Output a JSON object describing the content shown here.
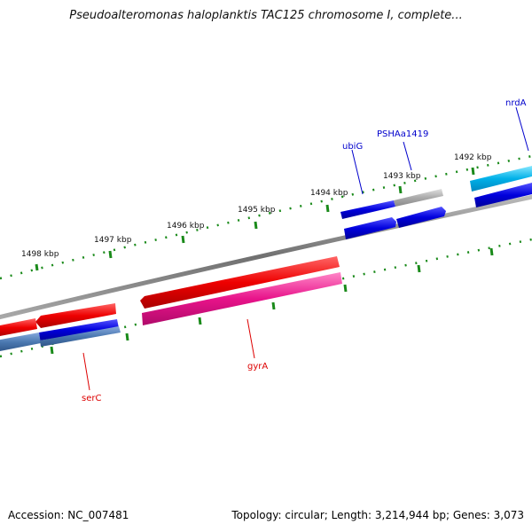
{
  "title": "Pseudoalteromonas haloplanktis TAC125 chromosome I, complete...",
  "footer": {
    "accession": "Accession: NC_007481",
    "summary": "Topology: circular; Length: 3,214,944 bp; Genes: 3,073"
  },
  "ticks": [
    "1498 kbp",
    "1497 kbp",
    "1496 kbp",
    "1495 kbp",
    "1494 kbp",
    "1493 kbp",
    "1492 kbp"
  ],
  "gene_labels": [
    {
      "name": "ubiG",
      "color": "#0000cc"
    },
    {
      "name": "PSHAa1419",
      "color": "#0000cc"
    },
    {
      "name": "nrdA",
      "color": "#0000cc"
    },
    {
      "name": "serC",
      "color": "#dd0000"
    },
    {
      "name": "gyrA",
      "color": "#dd0000"
    }
  ],
  "colors": {
    "backbone": "#888888",
    "tick": "#1a8a1a",
    "forward_gene": "#ee0000",
    "rna_gene": "#e8138a",
    "reverse_gene": "#0000dd",
    "misc_gene": "#999999",
    "light_blue_gene": "#00b0e8",
    "steel_blue_gene": "#4a78b0"
  }
}
